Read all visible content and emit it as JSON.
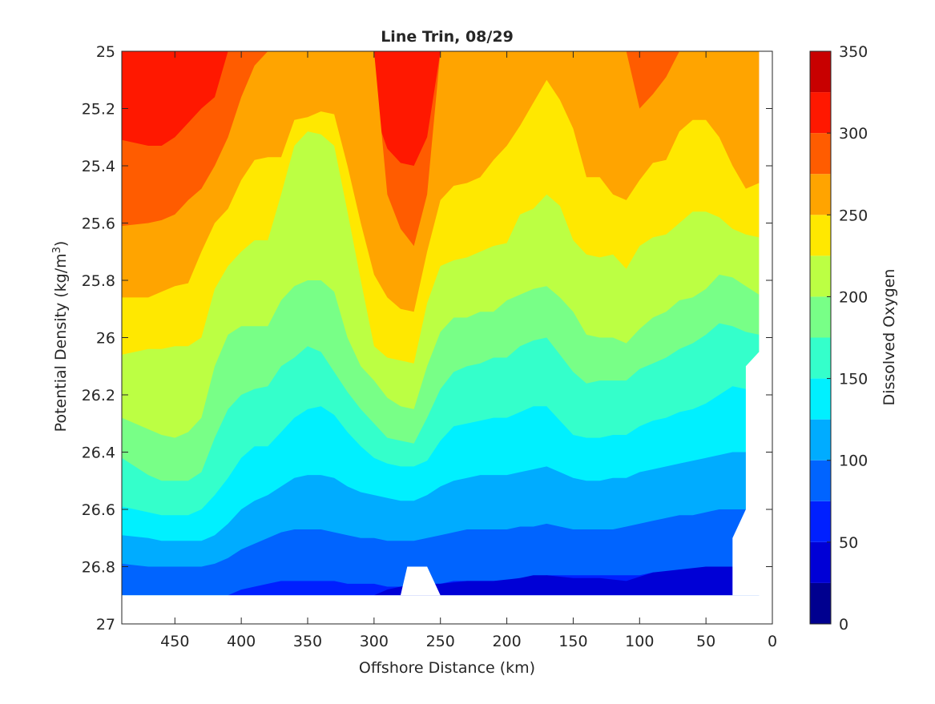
{
  "chart_data": {
    "type": "contourf",
    "title": "Line Trin, 08/29",
    "xlabel": "Offshore Distance (km)",
    "ylabel": "Potential Density (kg/m",
    "ylabel_sup": "3",
    "ylabel_close": ")",
    "xlim": [
      490,
      0
    ],
    "ylim": [
      27,
      25
    ],
    "x_reversed": true,
    "y_reversed": true,
    "xticks": [
      450,
      400,
      350,
      300,
      250,
      200,
      150,
      100,
      50,
      0
    ],
    "xtick_labels": [
      "450",
      "400",
      "350",
      "300",
      "250",
      "200",
      "150",
      "100",
      "50",
      "0"
    ],
    "yticks": [
      25,
      25.2,
      25.4,
      25.6,
      25.8,
      26,
      26.2,
      26.4,
      26.6,
      26.8,
      27
    ],
    "ytick_labels": [
      "25",
      "25.2",
      "25.4",
      "25.6",
      "25.8",
      "26",
      "26.2",
      "26.4",
      "26.6",
      "26.8",
      "27"
    ],
    "colorbar": {
      "label": "Dissolved Oxygen",
      "ticks": [
        0,
        50,
        100,
        150,
        200,
        250,
        300,
        350
      ],
      "tick_labels": [
        "0",
        "50",
        "100",
        "150",
        "200",
        "250",
        "300",
        "350"
      ],
      "levels": [
        0,
        25,
        50,
        75,
        100,
        125,
        150,
        175,
        200,
        225,
        250,
        275,
        300,
        325,
        350
      ],
      "colors": [
        "#00008f",
        "#0000d6",
        "#0020ff",
        "#0064ff",
        "#00acff",
        "#00f0ff",
        "#34ffcb",
        "#78ff87",
        "#bcff43",
        "#ffe800",
        "#ffa400",
        "#ff5c00",
        "#ff1800",
        "#c80000"
      ]
    },
    "stations_x": [
      490,
      470,
      460,
      450,
      440,
      430,
      420,
      410,
      400,
      390,
      380,
      370,
      360,
      350,
      340,
      330,
      320,
      310,
      300,
      290,
      280,
      270,
      260,
      250,
      240,
      230,
      220,
      210,
      200,
      190,
      180,
      170,
      160,
      150,
      140,
      130,
      120,
      110,
      100,
      90,
      80,
      70,
      60,
      50,
      40,
      30,
      20,
      10
    ],
    "contour_levels_sigma": {
      "250": [
        25.31,
        25.33,
        25.33,
        25.3,
        25.25,
        25.2,
        25.16,
        25.0,
        25.0,
        25.0,
        25.0,
        25.0,
        25.0,
        25.0,
        25.0,
        25.0,
        25.0,
        25.0,
        25.21,
        25.34,
        25.39,
        25.4,
        25.3,
        25.0,
        25.0,
        25.0,
        25.0,
        25.0,
        25.0,
        25.0,
        25.0,
        25.0,
        25.0,
        25.0,
        25.0,
        25.0,
        25.0,
        25.0,
        25.0,
        25.0,
        25.0,
        25.0,
        25.0,
        25.0,
        25.0,
        25.0,
        25.0,
        25.0
      ],
      "225": [
        25.61,
        25.6,
        25.59,
        25.57,
        25.52,
        25.48,
        25.4,
        25.3,
        25.16,
        25.05,
        25.0,
        25.0,
        25.0,
        25.0,
        25.0,
        25.0,
        25.0,
        25.0,
        25.0,
        25.5,
        25.62,
        25.68,
        25.5,
        25.0,
        25.0,
        25.0,
        25.0,
        25.0,
        25.0,
        25.0,
        25.0,
        25.0,
        25.0,
        25.0,
        25.0,
        25.0,
        25.0,
        25.0,
        25.2,
        25.15,
        25.09,
        25.0,
        25.0,
        25.0,
        25.0,
        25.0,
        25.0,
        25.0
      ],
      "200": [
        25.86,
        25.86,
        25.84,
        25.82,
        25.81,
        25.7,
        25.6,
        25.55,
        25.45,
        25.38,
        25.37,
        25.37,
        25.24,
        25.23,
        25.21,
        25.22,
        25.4,
        25.6,
        25.78,
        25.86,
        25.9,
        25.91,
        25.7,
        25.52,
        25.47,
        25.46,
        25.44,
        25.38,
        25.33,
        25.26,
        25.18,
        25.1,
        25.17,
        25.27,
        25.44,
        25.44,
        25.5,
        25.52,
        25.45,
        25.39,
        25.38,
        25.28,
        25.24,
        25.24,
        25.3,
        25.4,
        25.48,
        25.46
      ],
      "175": [
        26.06,
        26.04,
        26.04,
        26.03,
        26.03,
        26.0,
        25.83,
        25.75,
        25.7,
        25.66,
        25.66,
        25.5,
        25.33,
        25.28,
        25.29,
        25.33,
        25.56,
        25.8,
        26.03,
        26.07,
        26.08,
        26.09,
        25.88,
        25.75,
        25.73,
        25.72,
        25.7,
        25.68,
        25.67,
        25.57,
        25.55,
        25.5,
        25.54,
        25.66,
        25.71,
        25.72,
        25.71,
        25.76,
        25.68,
        25.65,
        25.64,
        25.6,
        25.56,
        25.56,
        25.58,
        25.62,
        25.64,
        25.65
      ],
      "150": [
        26.28,
        26.32,
        26.34,
        26.35,
        26.33,
        26.28,
        26.1,
        25.99,
        25.96,
        25.96,
        25.96,
        25.87,
        25.82,
        25.8,
        25.8,
        25.84,
        26.0,
        26.1,
        26.15,
        26.21,
        26.24,
        26.25,
        26.1,
        25.98,
        25.93,
        25.93,
        25.91,
        25.91,
        25.87,
        25.85,
        25.83,
        25.82,
        25.86,
        25.91,
        25.99,
        26.0,
        26.0,
        26.02,
        25.97,
        25.93,
        25.91,
        25.87,
        25.86,
        25.83,
        25.78,
        25.79,
        25.82,
        25.85
      ],
      "125": [
        26.42,
        26.48,
        26.5,
        26.5,
        26.5,
        26.47,
        26.35,
        26.25,
        26.2,
        26.18,
        26.17,
        26.1,
        26.07,
        26.03,
        26.05,
        26.12,
        26.19,
        26.25,
        26.3,
        26.35,
        26.36,
        26.37,
        26.28,
        26.18,
        26.12,
        26.1,
        26.09,
        26.07,
        26.07,
        26.03,
        26.01,
        26.0,
        26.06,
        26.12,
        26.16,
        26.15,
        26.15,
        26.15,
        26.11,
        26.09,
        26.07,
        26.04,
        26.02,
        25.99,
        25.95,
        25.96,
        25.98,
        25.99
      ],
      "100": [
        26.59,
        26.61,
        26.62,
        26.62,
        26.62,
        26.6,
        26.55,
        26.49,
        26.42,
        26.38,
        26.38,
        26.33,
        26.28,
        26.25,
        26.24,
        26.27,
        26.33,
        26.38,
        26.42,
        26.44,
        26.45,
        26.45,
        26.43,
        26.36,
        26.31,
        26.3,
        26.29,
        26.28,
        26.28,
        26.26,
        26.24,
        26.24,
        26.29,
        26.34,
        26.35,
        26.35,
        26.34,
        26.34,
        26.31,
        26.29,
        26.28,
        26.26,
        26.25,
        26.23,
        26.2,
        26.17,
        26.18,
        26.18
      ],
      "75": [
        26.69,
        26.7,
        26.71,
        26.71,
        26.71,
        26.71,
        26.69,
        26.65,
        26.6,
        26.57,
        26.55,
        26.52,
        26.49,
        26.48,
        26.48,
        26.49,
        26.52,
        26.54,
        26.55,
        26.56,
        26.57,
        26.57,
        26.55,
        26.52,
        26.5,
        26.49,
        26.48,
        26.48,
        26.48,
        26.47,
        26.46,
        26.45,
        26.47,
        26.49,
        26.5,
        26.5,
        26.49,
        26.49,
        26.47,
        26.46,
        26.45,
        26.44,
        26.43,
        26.42,
        26.41,
        26.4,
        26.4,
        26.4
      ],
      "50": [
        26.79,
        26.8,
        26.8,
        26.8,
        26.8,
        26.8,
        26.79,
        26.77,
        26.74,
        26.72,
        26.7,
        26.68,
        26.67,
        26.67,
        26.67,
        26.68,
        26.69,
        26.7,
        26.7,
        26.71,
        26.71,
        26.71,
        26.7,
        26.69,
        26.68,
        26.67,
        26.67,
        26.67,
        26.67,
        26.66,
        26.66,
        26.65,
        26.66,
        26.67,
        26.67,
        26.67,
        26.67,
        26.66,
        26.65,
        26.64,
        26.63,
        26.62,
        26.62,
        26.61,
        26.6,
        26.6,
        26.6,
        26.6
      ],
      "25": [
        26.9,
        26.9,
        26.9,
        26.9,
        26.9,
        26.9,
        26.9,
        26.9,
        26.88,
        26.87,
        26.86,
        26.85,
        26.85,
        26.85,
        26.85,
        26.85,
        26.86,
        26.86,
        26.86,
        26.87,
        26.87,
        26.87,
        26.86,
        26.86,
        26.85,
        26.85,
        26.85,
        26.85,
        26.85,
        26.84,
        26.84,
        26.83,
        26.83,
        26.83,
        26.83,
        26.83,
        26.83,
        26.83,
        26.83,
        26.82,
        26.82,
        26.81,
        26.81,
        26.8,
        26.8,
        26.8,
        26.8,
        26.8
      ]
    },
    "data_bottom_sigma": 26.9,
    "notch": {
      "x_range": [
        280,
        250
      ],
      "sigma_top": 26.8
    },
    "right_boundary": [
      [
        0,
        25.0
      ],
      [
        10,
        25.0
      ],
      [
        10,
        26.05
      ],
      [
        20,
        26.1
      ],
      [
        20,
        26.6
      ],
      [
        30,
        26.7
      ],
      [
        30,
        26.9
      ]
    ]
  }
}
